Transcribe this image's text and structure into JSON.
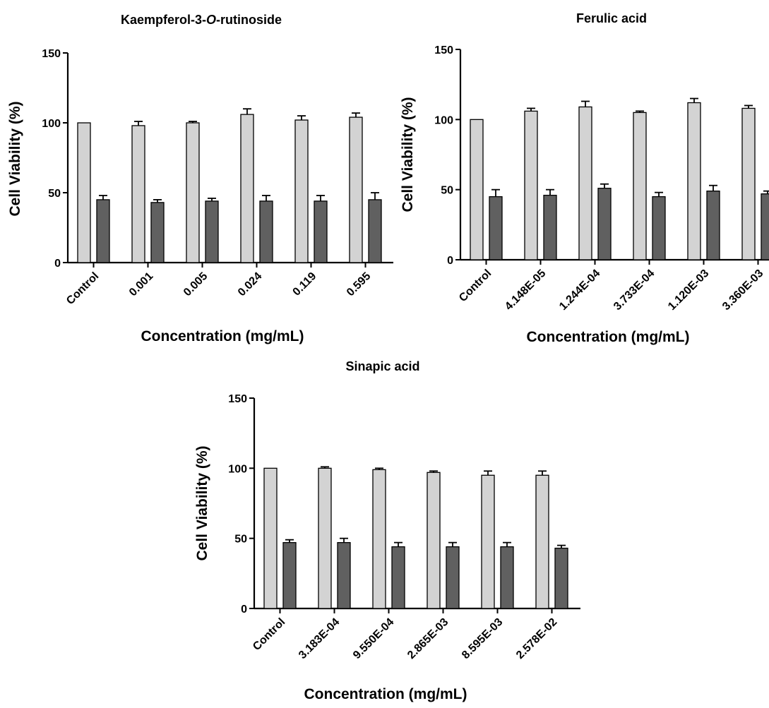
{
  "colors": {
    "untreated_bar": "#d3d3d3",
    "treated_bar": "#606060",
    "axis": "#000000"
  },
  "chart_data": [
    {
      "type": "bar",
      "title": "Kaempferol-3-O-rutinoside",
      "title_parts": [
        {
          "text": "Kaempferol-3-",
          "italic": false
        },
        {
          "text": "O",
          "italic": true
        },
        {
          "text": "-rutinoside",
          "italic": false
        }
      ],
      "xlabel": "Concentration (mg/mL)",
      "ylabel": "Cell Viability (%)",
      "ylim": [
        0,
        150
      ],
      "yticks": [
        0,
        50,
        100,
        150
      ],
      "categories": [
        "Control",
        "0.001",
        "0.005",
        "0.024",
        "0.119",
        "0.595"
      ],
      "series": [
        {
          "values": [
            100,
            98,
            100,
            106,
            102,
            104
          ],
          "errors": [
            0,
            3,
            1,
            4,
            3,
            3
          ]
        },
        {
          "values": [
            45,
            43,
            44,
            44,
            44,
            45
          ],
          "errors": [
            3,
            2,
            2,
            4,
            4,
            5
          ]
        }
      ],
      "grid": false
    },
    {
      "type": "bar",
      "title": "Ferulic acid",
      "title_parts": [
        {
          "text": "Ferulic acid",
          "italic": false
        }
      ],
      "xlabel": "Concentration (mg/mL)",
      "ylabel": "Cell Viability (%)",
      "ylim": [
        0,
        150
      ],
      "yticks": [
        0,
        50,
        100,
        150
      ],
      "categories": [
        "Control",
        "4.148E-05",
        "1.244E-04",
        "3.733E-04",
        "1.120E-03",
        "3.360E-03"
      ],
      "series": [
        {
          "values": [
            100,
            106,
            109,
            105,
            112,
            108
          ],
          "errors": [
            0,
            2,
            4,
            1,
            3,
            2
          ]
        },
        {
          "values": [
            45,
            46,
            51,
            45,
            49,
            47
          ],
          "errors": [
            5,
            4,
            3,
            3,
            4,
            2
          ]
        }
      ],
      "grid": false
    },
    {
      "type": "bar",
      "title": "Sinapic acid",
      "title_parts": [
        {
          "text": "Sinapic acid",
          "italic": false
        }
      ],
      "xlabel": "Concentration (mg/mL)",
      "ylabel": "Cell Viability (%)",
      "ylim": [
        0,
        150
      ],
      "yticks": [
        0,
        50,
        100,
        150
      ],
      "categories": [
        "Control",
        "3.183E-04",
        "9.550E-04",
        "2.865E-03",
        "8.595E-03",
        "2.578E-02"
      ],
      "series": [
        {
          "values": [
            100,
            100,
            99,
            97,
            95,
            95
          ],
          "errors": [
            0,
            1,
            1,
            1,
            3,
            3
          ]
        },
        {
          "values": [
            47,
            47,
            44,
            44,
            44,
            43
          ],
          "errors": [
            2,
            3,
            3,
            3,
            3,
            2
          ]
        }
      ],
      "grid": false
    }
  ]
}
